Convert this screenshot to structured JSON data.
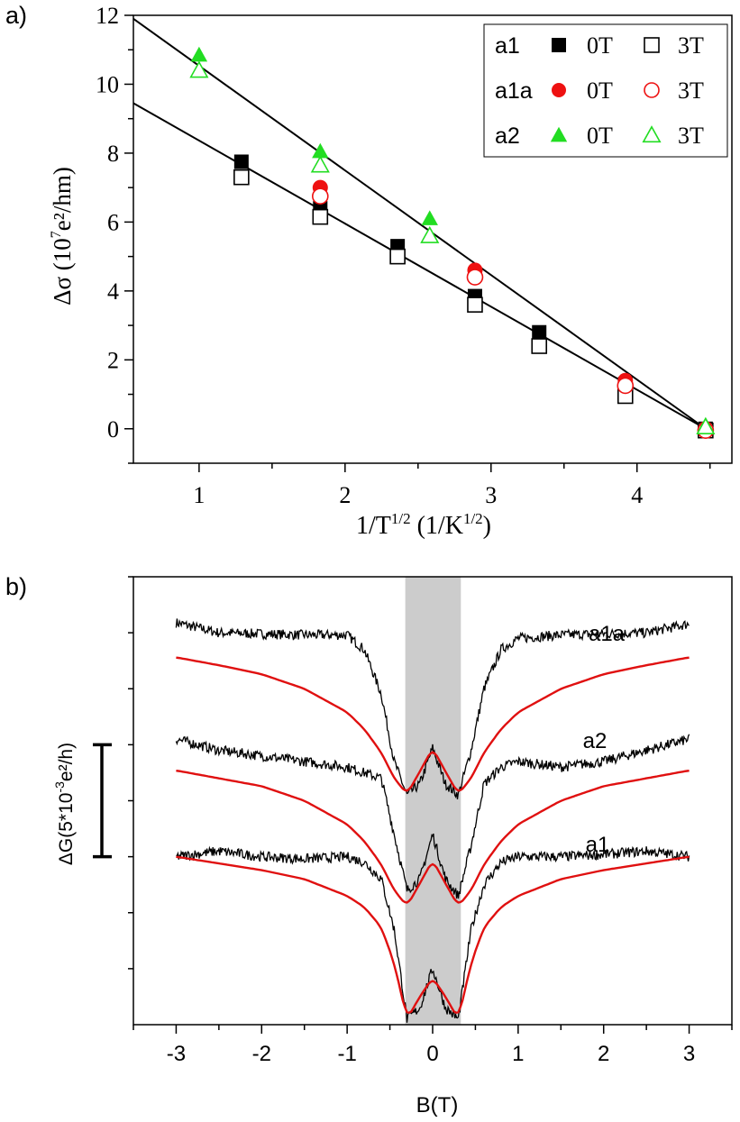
{
  "chart_data": [
    {
      "panel_label": "a)",
      "type": "scatter",
      "xlabel": "1/T",
      "xlabel_sup": "1/2",
      "xlabel_unit_pre": "(1/K",
      "xlabel_unit_sup": "1/2",
      "xlabel_unit_post": ")",
      "ylabel": "Δσ (10",
      "ylabel_sup": "7",
      "ylabel_unit": "e²/hm)",
      "xlim": [
        0.55,
        4.65
      ],
      "ylim": [
        -1,
        12
      ],
      "xticks": [
        {
          "value": 1,
          "label": "1"
        },
        {
          "value": 2,
          "label": "2"
        },
        {
          "value": 3,
          "label": "3"
        },
        {
          "value": 4,
          "label": "4"
        }
      ],
      "yticks": [
        {
          "value": 0,
          "label": "0"
        },
        {
          "value": 2,
          "label": "2"
        },
        {
          "value": 4,
          "label": "4"
        },
        {
          "value": 6,
          "label": "6"
        },
        {
          "value": 8,
          "label": "8"
        },
        {
          "value": 10,
          "label": "10"
        },
        {
          "value": 12,
          "label": "12"
        }
      ],
      "series": [
        {
          "name": "a1 0T",
          "marker": "square",
          "filled": true,
          "color": "#000000",
          "points": [
            [
              1.29,
              7.75
            ],
            [
              1.83,
              6.4
            ],
            [
              2.36,
              5.3
            ],
            [
              2.89,
              3.85
            ],
            [
              3.33,
              2.8
            ],
            [
              3.92,
              1.3
            ],
            [
              4.47,
              0.0
            ]
          ]
        },
        {
          "name": "a1 3T",
          "marker": "square",
          "filled": false,
          "color": "#000000",
          "points": [
            [
              1.29,
              7.3
            ],
            [
              1.83,
              6.15
            ],
            [
              2.36,
              5.0
            ],
            [
              2.89,
              3.6
            ],
            [
              3.33,
              2.4
            ],
            [
              3.92,
              0.95
            ],
            [
              4.47,
              -0.05
            ]
          ]
        },
        {
          "name": "a1a 0T",
          "marker": "circle",
          "filled": true,
          "color": "#ee1111",
          "points": [
            [
              1.83,
              7.0
            ],
            [
              2.89,
              4.6
            ],
            [
              3.92,
              1.4
            ],
            [
              4.47,
              0.0
            ]
          ]
        },
        {
          "name": "a1a 3T",
          "marker": "circle",
          "filled": false,
          "color": "#ee1111",
          "points": [
            [
              1.83,
              6.75
            ],
            [
              2.89,
              4.4
            ],
            [
              3.92,
              1.25
            ],
            [
              4.47,
              -0.05
            ]
          ]
        },
        {
          "name": "a2 0T",
          "marker": "triangle",
          "filled": true,
          "color": "#22dd22",
          "points": [
            [
              1.0,
              10.85
            ],
            [
              1.83,
              8.05
            ],
            [
              2.58,
              6.1
            ],
            [
              4.47,
              0.1
            ]
          ]
        },
        {
          "name": "a2 3T",
          "marker": "triangle",
          "filled": false,
          "color": "#22dd22",
          "points": [
            [
              1.0,
              10.4
            ],
            [
              1.83,
              7.65
            ],
            [
              2.58,
              5.6
            ],
            [
              4.47,
              0.05
            ]
          ]
        }
      ],
      "fit_lines": [
        {
          "x": [
            0.55,
            4.47
          ],
          "y": [
            11.9,
            0.0
          ]
        },
        {
          "x": [
            0.55,
            4.47
          ],
          "y": [
            9.45,
            0.0
          ]
        }
      ],
      "legend": {
        "position": "top-right",
        "rows": [
          {
            "sample": "a1",
            "marker": "square",
            "color": "#000000",
            "label_filled": "0T",
            "label_open": "3T"
          },
          {
            "sample": "a1a",
            "marker": "circle",
            "color": "#ee1111",
            "label_filled": "0T",
            "label_open": "3T"
          },
          {
            "sample": "a2",
            "marker": "triangle",
            "color": "#22dd22",
            "label_filled": "0T",
            "label_open": "3T"
          }
        ]
      }
    },
    {
      "panel_label": "b)",
      "type": "line",
      "xlabel": "B(T)",
      "ylabel": "ΔG(5*10",
      "ylabel_sup": "-3",
      "ylabel_unit": "e²/h)",
      "xlim": [
        -3.5,
        3.5
      ],
      "ylim": [
        0,
        4
      ],
      "xticks": [
        {
          "value": -3,
          "label": "-3"
        },
        {
          "value": -2,
          "label": "-2"
        },
        {
          "value": -1,
          "label": "-1"
        },
        {
          "value": 0,
          "label": "0"
        },
        {
          "value": 1,
          "label": "1"
        },
        {
          "value": 2,
          "label": "2"
        },
        {
          "value": 3,
          "label": "3"
        }
      ],
      "shaded_band": {
        "x": [
          -0.32,
          0.33
        ],
        "color": "#cccccc"
      },
      "scale_bar": {
        "y": [
          1.5,
          2.5
        ],
        "note": "one scale bar unit = 5*10^-3 e²/h"
      },
      "curves": [
        {
          "label": "a1a",
          "offset": 3.5,
          "data_x": [
            -3,
            -2.5,
            -2,
            -1.5,
            -1,
            -0.8,
            -0.6,
            -0.45,
            -0.3,
            -0.15,
            0,
            0.15,
            0.3,
            0.45,
            0.6,
            0.8,
            1,
            1.5,
            2,
            2.5,
            3
          ],
          "data_y": [
            3.59,
            3.5,
            3.49,
            3.48,
            3.48,
            3.35,
            2.95,
            2.35,
            2.05,
            2.15,
            2.47,
            2.15,
            2.05,
            2.45,
            3.0,
            3.35,
            3.45,
            3.48,
            3.49,
            3.5,
            3.58
          ],
          "fit_y": [
            3.28,
            3.21,
            3.13,
            3.0,
            2.79,
            2.64,
            2.43,
            2.2,
            2.06,
            2.26,
            2.47,
            2.26,
            2.06,
            2.2,
            2.43,
            2.64,
            2.79,
            3.0,
            3.13,
            3.21,
            3.28
          ]
        },
        {
          "label": "a2",
          "offset": 2.5,
          "data_x": [
            -3,
            -2.5,
            -2,
            -1.5,
            -1,
            -0.8,
            -0.6,
            -0.45,
            -0.3,
            -0.15,
            0,
            0.15,
            0.3,
            0.45,
            0.6,
            0.8,
            1,
            1.5,
            2,
            2.5,
            3
          ],
          "data_y": [
            2.55,
            2.45,
            2.4,
            2.35,
            2.3,
            2.25,
            2.2,
            1.7,
            1.2,
            1.3,
            1.7,
            1.3,
            1.15,
            1.6,
            2.15,
            2.3,
            2.35,
            2.3,
            2.35,
            2.45,
            2.55
          ],
          "fit_y": [
            2.27,
            2.2,
            2.13,
            2.0,
            1.79,
            1.64,
            1.43,
            1.2,
            1.06,
            1.26,
            1.47,
            1.26,
            1.06,
            1.2,
            1.43,
            1.64,
            1.79,
            2.0,
            2.13,
            2.2,
            2.27
          ]
        },
        {
          "label": "a1",
          "offset": 1.5,
          "data_x": [
            -3,
            -2.5,
            -2,
            -1.5,
            -1,
            -0.8,
            -0.6,
            -0.45,
            -0.3,
            -0.15,
            0,
            0.15,
            0.3,
            0.45,
            0.6,
            0.8,
            1,
            1.5,
            2,
            2.5,
            3
          ],
          "data_y": [
            1.5,
            1.55,
            1.5,
            1.48,
            1.5,
            1.45,
            1.3,
            0.85,
            0.05,
            0.15,
            0.5,
            0.15,
            0.05,
            0.85,
            1.25,
            1.45,
            1.5,
            1.5,
            1.52,
            1.55,
            1.5
          ],
          "fit_y": [
            1.5,
            1.44,
            1.38,
            1.3,
            1.15,
            1.05,
            0.87,
            0.55,
            0.05,
            0.25,
            0.42,
            0.25,
            0.05,
            0.55,
            0.87,
            1.05,
            1.15,
            1.3,
            1.38,
            1.44,
            1.5
          ]
        }
      ]
    }
  ]
}
